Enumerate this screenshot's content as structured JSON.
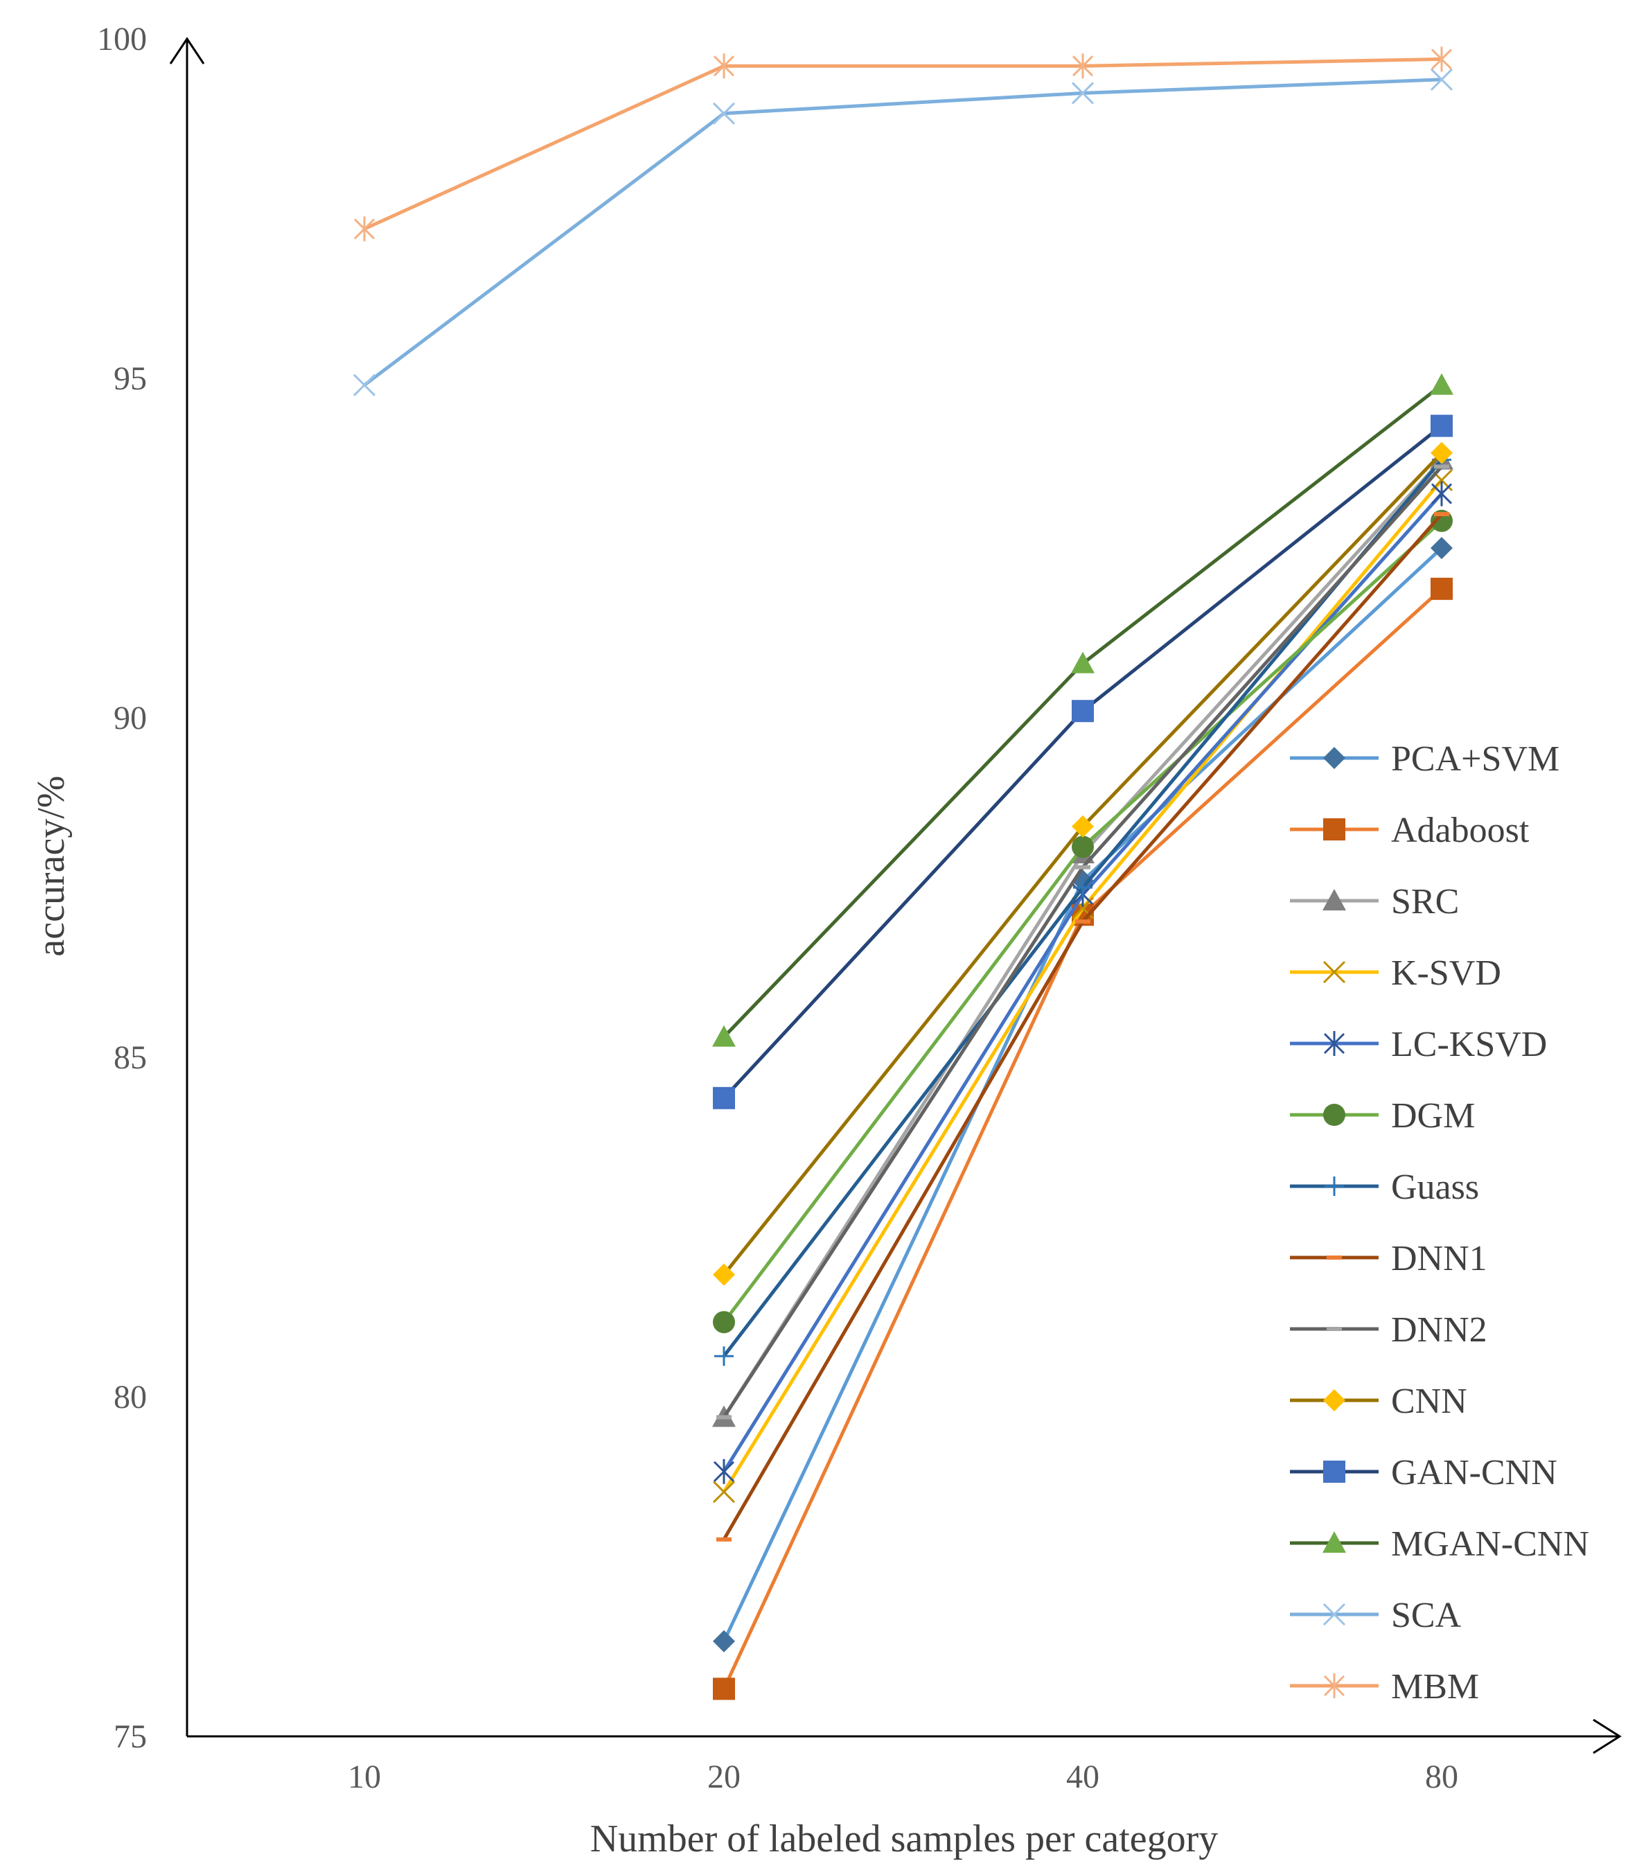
{
  "chart_data": {
    "type": "line",
    "title": "",
    "xlabel": "Number of labeled samples per category",
    "ylabel": "accuracy/%",
    "categories": [
      "10",
      "20",
      "40",
      "80"
    ],
    "ylim": [
      75,
      100
    ],
    "yticks": [
      "75",
      "80",
      "85",
      "90",
      "95",
      "100"
    ],
    "grid": false,
    "legend_position": "right",
    "series": [
      {
        "name": "PCA+SVM",
        "marker": "diamond",
        "line_color": "#5B9BD5",
        "marker_color": "#41719C",
        "values": [
          null,
          76.4,
          87.6,
          92.5
        ]
      },
      {
        "name": "Adaboost",
        "marker": "square",
        "line_color": "#ED7D31",
        "marker_color": "#C55A11",
        "values": [
          null,
          75.7,
          87.1,
          91.9
        ]
      },
      {
        "name": "SRC",
        "marker": "triangle",
        "line_color": "#A5A5A5",
        "marker_color": "#7F7F7F",
        "values": [
          null,
          79.7,
          88.0,
          93.8
        ]
      },
      {
        "name": "K-SVD",
        "marker": "x",
        "line_color": "#FFC000",
        "marker_color": "#BF9000",
        "values": [
          null,
          78.6,
          87.2,
          93.5
        ]
      },
      {
        "name": "LC-KSVD",
        "marker": "star",
        "line_color": "#4472C4",
        "marker_color": "#2F5597",
        "values": [
          null,
          78.9,
          87.4,
          93.3
        ]
      },
      {
        "name": "DGM",
        "marker": "circle",
        "line_color": "#70AD47",
        "marker_color": "#548235",
        "values": [
          null,
          81.1,
          88.1,
          92.9
        ]
      },
      {
        "name": "Guass",
        "marker": "plus",
        "line_color": "#255E91",
        "marker_color": "#2E75B6",
        "values": [
          null,
          80.6,
          87.5,
          93.8
        ]
      },
      {
        "name": "DNN1",
        "marker": "dash",
        "line_color": "#9E480E",
        "marker_color": "#ED7D31",
        "values": [
          null,
          77.9,
          87.0,
          93.0
        ]
      },
      {
        "name": "DNN2",
        "marker": "dash",
        "line_color": "#636363",
        "marker_color": "#A5A5A5",
        "values": [
          null,
          79.7,
          87.8,
          93.7
        ]
      },
      {
        "name": "CNN",
        "marker": "diamond",
        "line_color": "#997300",
        "marker_color": "#FFC000",
        "values": [
          null,
          81.8,
          88.4,
          93.9
        ]
      },
      {
        "name": "GAN-CNN",
        "marker": "square",
        "line_color": "#264478",
        "marker_color": "#4472C4",
        "values": [
          null,
          84.4,
          90.1,
          94.3
        ]
      },
      {
        "name": "MGAN-CNN",
        "marker": "triangle",
        "line_color": "#43682B",
        "marker_color": "#70AD47",
        "values": [
          null,
          85.3,
          90.8,
          94.9
        ]
      },
      {
        "name": "SCA",
        "marker": "x",
        "line_color": "#7CAFDD",
        "marker_color": "#9DC3E6",
        "values": [
          94.9,
          98.9,
          99.2,
          99.4
        ]
      },
      {
        "name": "MBM",
        "marker": "star",
        "line_color": "#F4A46C",
        "marker_color": "#F4B183",
        "values": [
          97.2,
          99.6,
          99.6,
          99.7
        ]
      }
    ]
  }
}
